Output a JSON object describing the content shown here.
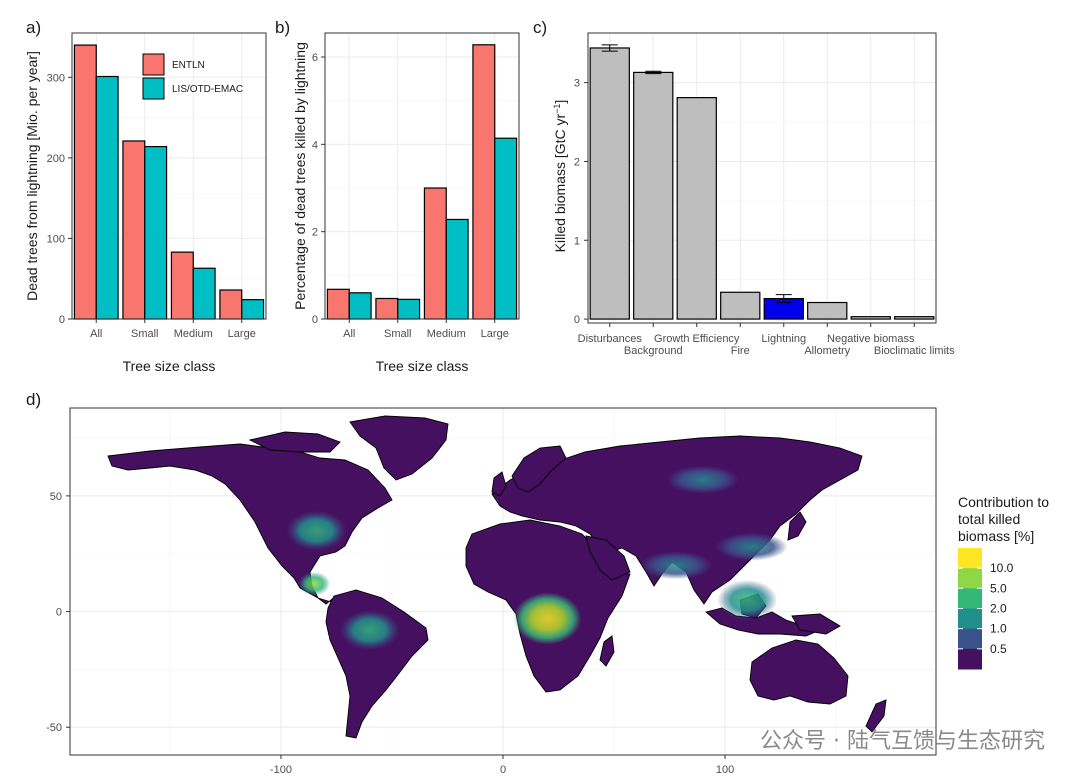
{
  "panel_labels": {
    "a": "a)",
    "b": "b)",
    "c": "c)",
    "d": "d)"
  },
  "colors": {
    "entln": "#f8766d",
    "lis": "#00bfc4",
    "gray_bar": "#bebebe",
    "lightning_bar": "#0000ee",
    "land": "#45105f"
  },
  "chart_data": [
    {
      "id": "a",
      "type": "bar",
      "categories": [
        "All",
        "Small",
        "Medium",
        "Large"
      ],
      "series": [
        {
          "name": "ENTLN",
          "values": [
            340,
            221,
            83,
            36
          ]
        },
        {
          "name": "LIS/OTD-EMAC",
          "values": [
            301,
            214,
            63,
            24
          ]
        }
      ],
      "title": "",
      "xlabel": "Tree size class",
      "ylabel": "Dead trees from lightning [Mio. per year]",
      "ylim": [
        0,
        355
      ],
      "yticks": [
        0,
        100,
        200,
        300
      ],
      "legend": "top-right",
      "grid": true
    },
    {
      "id": "b",
      "type": "bar",
      "categories": [
        "All",
        "Small",
        "Medium",
        "Large"
      ],
      "series": [
        {
          "name": "ENTLN",
          "values": [
            0.68,
            0.47,
            3.0,
            6.28
          ]
        },
        {
          "name": "LIS/OTD-EMAC",
          "values": [
            0.6,
            0.45,
            2.28,
            4.14
          ]
        }
      ],
      "title": "",
      "xlabel": "Tree size class",
      "ylabel": "Percentage of dead trees killed by lightning",
      "ylim": [
        0,
        6.55
      ],
      "yticks": [
        0,
        2,
        4,
        6
      ],
      "grid": true
    },
    {
      "id": "c",
      "type": "bar",
      "categories": [
        "Disturbances",
        "Background",
        "Growth Efficiency",
        "Fire",
        "Lightning",
        "Allometry",
        "Negative biomass",
        "Bioclimatic limits"
      ],
      "values": [
        3.44,
        3.13,
        2.81,
        0.34,
        0.26,
        0.21,
        0.03,
        0.03
      ],
      "errors": [
        0.04,
        0.015,
        0,
        0,
        0.05,
        0,
        0,
        0
      ],
      "highlight": "Lightning",
      "title": "",
      "xlabel": "",
      "ylabel": "Killed biomass [GtC yr",
      "ylabel_sup": "−1",
      "ylabel_end": "]",
      "ylim": [
        -0.05,
        3.63
      ],
      "yticks": [
        0,
        1,
        2,
        3
      ],
      "grid": true
    },
    {
      "id": "d",
      "type": "heatmap",
      "title": "",
      "xticks": [
        -100,
        0,
        100
      ],
      "yticks": [
        -50,
        0,
        50
      ],
      "xlim": [
        -195,
        195
      ],
      "ylim": [
        -62,
        88
      ],
      "legend_title": [
        "Contribution to",
        "total killed",
        "biomass [%]"
      ],
      "legend_levels": [
        "10.0",
        "5.0",
        "2.0",
        "1.0",
        "0.5"
      ],
      "legend_colors": [
        "#fde725",
        "#8fd744",
        "#35b779",
        "#21908d",
        "#3b528b",
        "#45105f"
      ],
      "hotspots": [
        {
          "region": "Congo Basin",
          "lon": 20,
          "lat": -3,
          "level": 10.0
        },
        {
          "region": "Central America",
          "lon": -85,
          "lat": 12,
          "level": 5.0
        },
        {
          "region": "Amazon",
          "lon": -60,
          "lat": -8,
          "level": 2.0
        },
        {
          "region": "Southeast US",
          "lon": -84,
          "lat": 35,
          "level": 2.0
        },
        {
          "region": "Southeast Asia",
          "lon": 110,
          "lat": 5,
          "level": 2.0
        },
        {
          "region": "India",
          "lon": 78,
          "lat": 20,
          "level": 1.0
        },
        {
          "region": "China",
          "lon": 112,
          "lat": 28,
          "level": 1.0
        },
        {
          "region": "Siberia",
          "lon": 90,
          "lat": 57,
          "level": 1.0
        }
      ]
    }
  ],
  "watermark": "公众号 · 陆气互馈与生态研究"
}
